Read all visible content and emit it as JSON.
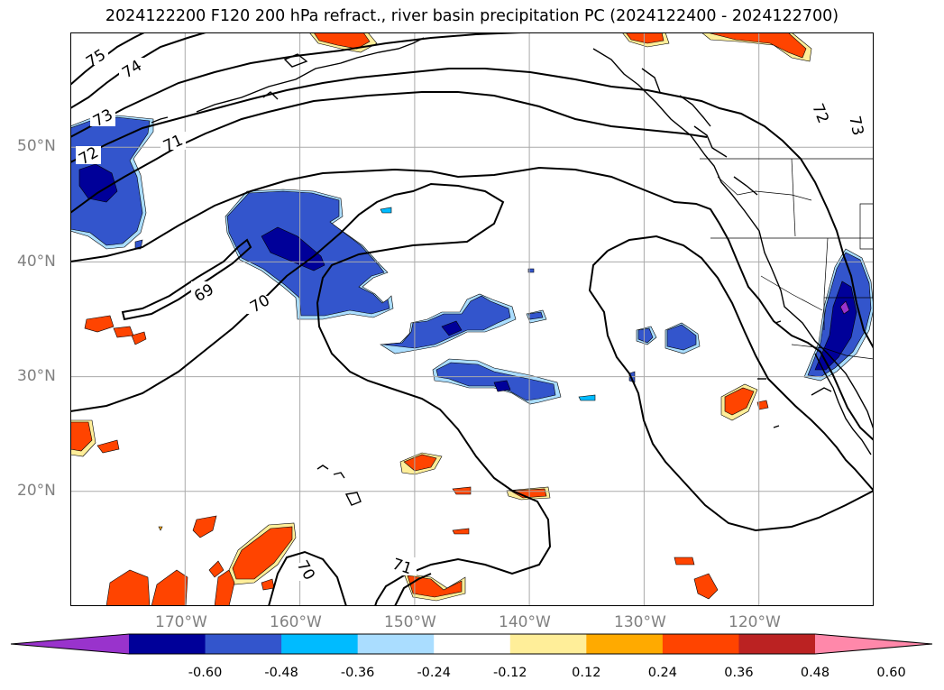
{
  "title": "2024122200 F120 200 hPa refract., river basin precipitation PC (2024122400 - 2024122700)",
  "map": {
    "lon_range": [
      -180,
      -110
    ],
    "lat_range": [
      10,
      60
    ],
    "lon_ticks": [
      {
        "value": -170,
        "label": "170°W"
      },
      {
        "value": -160,
        "label": "160°W"
      },
      {
        "value": -150,
        "label": "150°W"
      },
      {
        "value": -140,
        "label": "140°W"
      },
      {
        "value": -130,
        "label": "130°W"
      },
      {
        "value": -120,
        "label": "120°W"
      }
    ],
    "lat_ticks": [
      {
        "value": 20,
        "label": "20°N"
      },
      {
        "value": 30,
        "label": "30°N"
      },
      {
        "value": 40,
        "label": "40°N"
      },
      {
        "value": 50,
        "label": "50°N"
      }
    ],
    "gridlines": true,
    "contour_labels": [
      "75",
      "74",
      "73",
      "72",
      "71",
      "70",
      "69",
      "71",
      "70",
      "72",
      "73"
    ]
  },
  "colorbar": {
    "levels": [
      "-0.60",
      "-0.48",
      "-0.36",
      "-0.24",
      "-0.12",
      "0.12",
      "0.24",
      "0.36",
      "0.48",
      "0.60"
    ],
    "colors": [
      "#9933cc",
      "#000099",
      "#3355cc",
      "#00bbff",
      "#aaddff",
      "#ffffff",
      "#ffee99",
      "#ffaa00",
      "#ff4400",
      "#bb2222",
      "#ff88aa"
    ],
    "extend": "both"
  }
}
